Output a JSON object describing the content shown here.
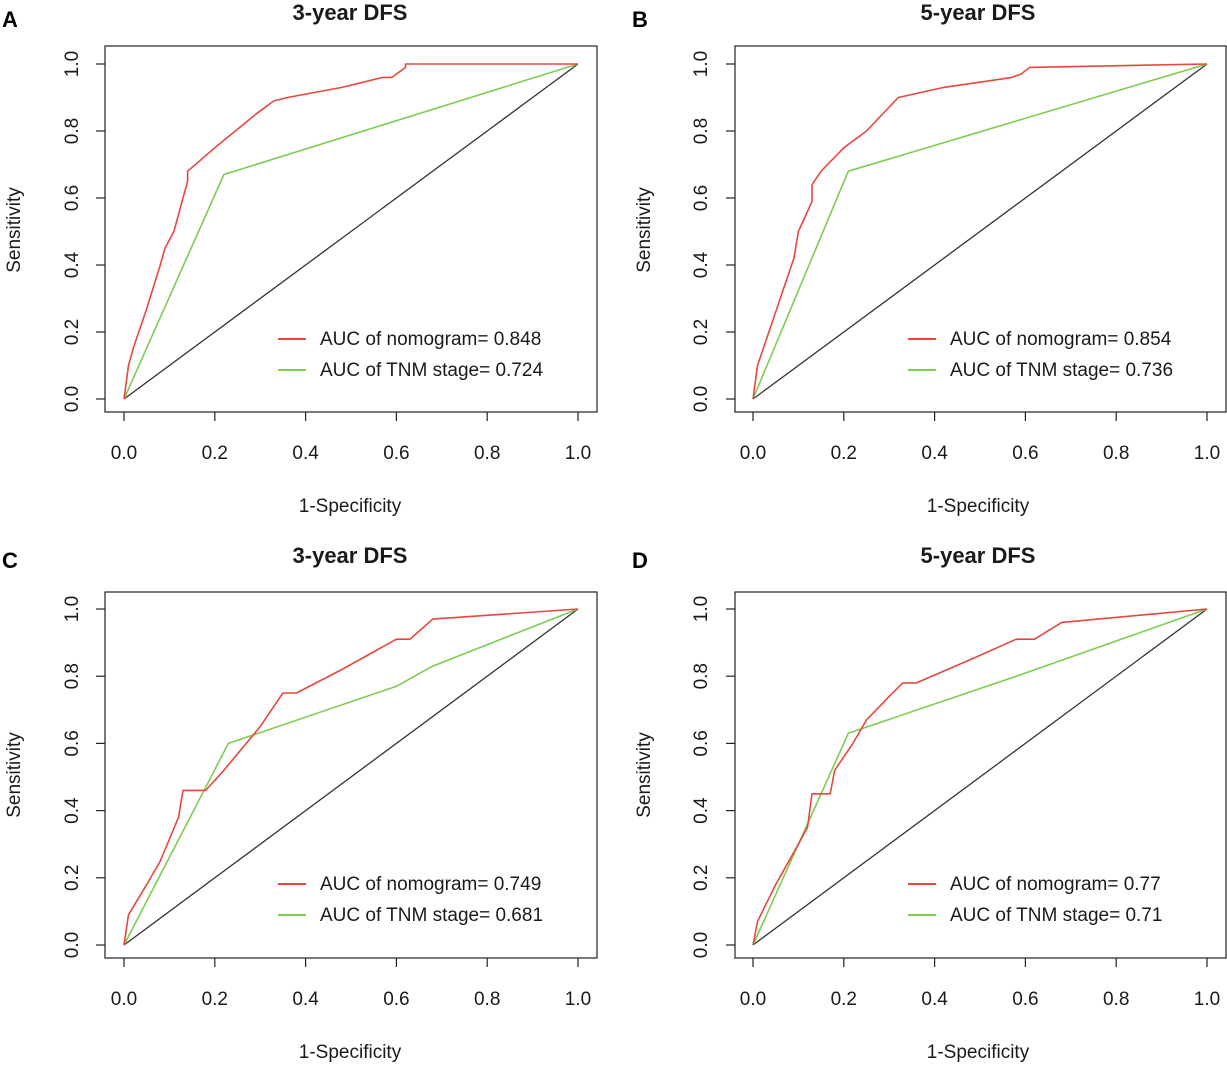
{
  "figure": {
    "width": 1227,
    "height": 1068
  },
  "colors": {
    "nomogram": "#e8473f",
    "tnm": "#7ccd52",
    "reference": "#333333",
    "frame": "#222222"
  },
  "chart_data": [
    {
      "type": "line",
      "panel_label": "A",
      "title": "3-year DFS",
      "xlabel": "1-Specificity",
      "ylabel": "Sensitivity",
      "xlim": [
        0,
        1
      ],
      "ylim": [
        0,
        1
      ],
      "xticks": [
        "0.0",
        "0.2",
        "0.4",
        "0.6",
        "0.8",
        "1.0"
      ],
      "yticks": [
        "0.0",
        "0.2",
        "0.4",
        "0.6",
        "0.8",
        "1.0"
      ],
      "legend_position": "bottom-right",
      "series": [
        {
          "name": "nomogram",
          "legend": "AUC of nomogram= 0.848",
          "color": "#e8473f",
          "points": [
            [
              0,
              0
            ],
            [
              0.01,
              0.1
            ],
            [
              0.02,
              0.15
            ],
            [
              0.05,
              0.27
            ],
            [
              0.08,
              0.4
            ],
            [
              0.09,
              0.45
            ],
            [
              0.11,
              0.5
            ],
            [
              0.13,
              0.6
            ],
            [
              0.14,
              0.65
            ],
            [
              0.14,
              0.68
            ],
            [
              0.2,
              0.75
            ],
            [
              0.29,
              0.85
            ],
            [
              0.33,
              0.89
            ],
            [
              0.36,
              0.9
            ],
            [
              0.48,
              0.93
            ],
            [
              0.57,
              0.96
            ],
            [
              0.59,
              0.96
            ],
            [
              0.62,
              0.99
            ],
            [
              0.62,
              1.0
            ],
            [
              1,
              1
            ]
          ]
        },
        {
          "name": "TNM stage",
          "legend": "AUC of TNM stage= 0.724",
          "color": "#7ccd52",
          "points": [
            [
              0,
              0
            ],
            [
              0.22,
              0.67
            ],
            [
              1,
              1
            ]
          ]
        },
        {
          "name": "reference",
          "legend": "",
          "color": "#333333",
          "points": [
            [
              0,
              0
            ],
            [
              1,
              1
            ]
          ]
        }
      ]
    },
    {
      "type": "line",
      "panel_label": "B",
      "title": "5-year DFS",
      "xlabel": "1-Specificity",
      "ylabel": "Sensitivity",
      "xlim": [
        0,
        1
      ],
      "ylim": [
        0,
        1
      ],
      "xticks": [
        "0.0",
        "0.2",
        "0.4",
        "0.6",
        "0.8",
        "1.0"
      ],
      "yticks": [
        "0.0",
        "0.2",
        "0.4",
        "0.6",
        "0.8",
        "1.0"
      ],
      "legend_position": "bottom-right",
      "series": [
        {
          "name": "nomogram",
          "legend": "AUC of nomogram= 0.854",
          "color": "#e8473f",
          "points": [
            [
              0,
              0
            ],
            [
              0.01,
              0.1
            ],
            [
              0.04,
              0.22
            ],
            [
              0.06,
              0.3
            ],
            [
              0.09,
              0.42
            ],
            [
              0.1,
              0.5
            ],
            [
              0.13,
              0.59
            ],
            [
              0.13,
              0.64
            ],
            [
              0.15,
              0.68
            ],
            [
              0.2,
              0.75
            ],
            [
              0.25,
              0.8
            ],
            [
              0.32,
              0.9
            ],
            [
              0.42,
              0.93
            ],
            [
              0.52,
              0.95
            ],
            [
              0.57,
              0.96
            ],
            [
              0.59,
              0.97
            ],
            [
              0.61,
              0.99
            ],
            [
              1,
              1
            ]
          ]
        },
        {
          "name": "TNM stage",
          "legend": "AUC of TNM stage= 0.736",
          "color": "#7ccd52",
          "points": [
            [
              0,
              0
            ],
            [
              0.21,
              0.68
            ],
            [
              1,
              1
            ]
          ]
        },
        {
          "name": "reference",
          "legend": "",
          "color": "#333333",
          "points": [
            [
              0,
              0
            ],
            [
              1,
              1
            ]
          ]
        }
      ]
    },
    {
      "type": "line",
      "panel_label": "C",
      "title": "3-year DFS",
      "xlabel": "1-Specificity",
      "ylabel": "Sensitivity",
      "xlim": [
        0,
        1
      ],
      "ylim": [
        0,
        1
      ],
      "xticks": [
        "0.0",
        "0.2",
        "0.4",
        "0.6",
        "0.8",
        "1.0"
      ],
      "yticks": [
        "0.0",
        "0.2",
        "0.4",
        "0.6",
        "0.8",
        "1.0"
      ],
      "legend_position": "bottom-right",
      "series": [
        {
          "name": "nomogram",
          "legend": "AUC of nomogram= 0.749",
          "color": "#e8473f",
          "points": [
            [
              0,
              0
            ],
            [
              0.01,
              0.09
            ],
            [
              0.05,
              0.18
            ],
            [
              0.08,
              0.25
            ],
            [
              0.12,
              0.38
            ],
            [
              0.13,
              0.46
            ],
            [
              0.18,
              0.46
            ],
            [
              0.22,
              0.52
            ],
            [
              0.3,
              0.65
            ],
            [
              0.35,
              0.75
            ],
            [
              0.38,
              0.75
            ],
            [
              0.48,
              0.82
            ],
            [
              0.6,
              0.91
            ],
            [
              0.63,
              0.91
            ],
            [
              0.68,
              0.97
            ],
            [
              1,
              1
            ]
          ]
        },
        {
          "name": "TNM stage",
          "legend": "AUC of TNM stage= 0.681",
          "color": "#7ccd52",
          "points": [
            [
              0,
              0
            ],
            [
              0.23,
              0.6
            ],
            [
              0.6,
              0.77
            ],
            [
              0.68,
              0.83
            ],
            [
              1,
              1
            ]
          ]
        },
        {
          "name": "reference",
          "legend": "",
          "color": "#333333",
          "points": [
            [
              0,
              0
            ],
            [
              1,
              1
            ]
          ]
        }
      ]
    },
    {
      "type": "line",
      "panel_label": "D",
      "title": "5-year DFS",
      "xlabel": "1-Specificity",
      "ylabel": "Sensitivity",
      "xlim": [
        0,
        1
      ],
      "ylim": [
        0,
        1
      ],
      "xticks": [
        "0.0",
        "0.2",
        "0.4",
        "0.6",
        "0.8",
        "1.0"
      ],
      "yticks": [
        "0.0",
        "0.2",
        "0.4",
        "0.6",
        "0.8",
        "1.0"
      ],
      "legend_position": "bottom-right",
      "series": [
        {
          "name": "nomogram",
          "legend": "AUC of nomogram= 0.77",
          "color": "#e8473f",
          "points": [
            [
              0,
              0
            ],
            [
              0.01,
              0.07
            ],
            [
              0.05,
              0.18
            ],
            [
              0.1,
              0.3
            ],
            [
              0.12,
              0.35
            ],
            [
              0.13,
              0.45
            ],
            [
              0.17,
              0.45
            ],
            [
              0.18,
              0.52
            ],
            [
              0.22,
              0.6
            ],
            [
              0.25,
              0.67
            ],
            [
              0.3,
              0.74
            ],
            [
              0.33,
              0.78
            ],
            [
              0.36,
              0.78
            ],
            [
              0.48,
              0.85
            ],
            [
              0.58,
              0.91
            ],
            [
              0.62,
              0.91
            ],
            [
              0.68,
              0.96
            ],
            [
              1,
              1
            ]
          ]
        },
        {
          "name": "TNM stage",
          "legend": "AUC of TNM stage= 0.71",
          "color": "#7ccd52",
          "points": [
            [
              0,
              0
            ],
            [
              0.12,
              0.36
            ],
            [
              0.21,
              0.63
            ],
            [
              0.58,
              0.8
            ],
            [
              1,
              1
            ]
          ]
        },
        {
          "name": "reference",
          "legend": "",
          "color": "#333333",
          "points": [
            [
              0,
              0
            ],
            [
              1,
              1
            ]
          ]
        }
      ]
    }
  ]
}
